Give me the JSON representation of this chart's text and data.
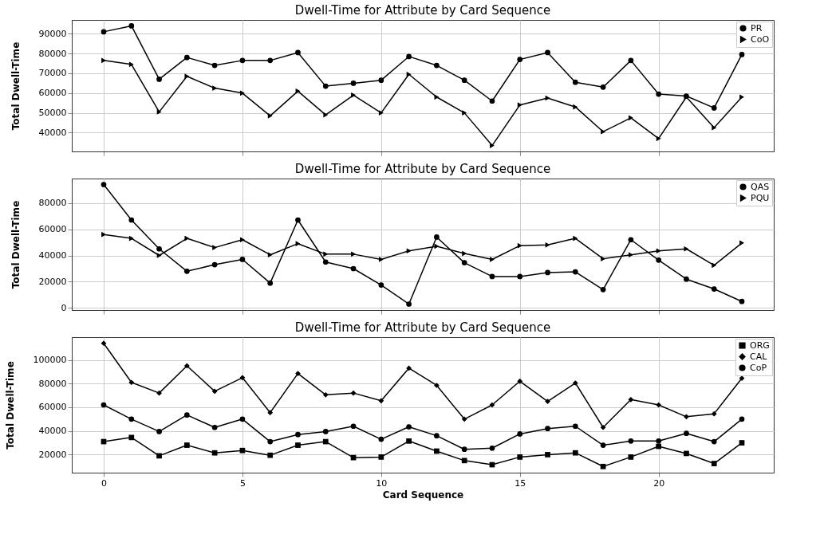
{
  "chart_data": [
    {
      "type": "line",
      "title": "Dwell-Time for Attribute by Card Sequence",
      "ylabel": "Total Dwell-Time",
      "x": [
        0,
        1,
        2,
        3,
        4,
        5,
        6,
        7,
        8,
        9,
        10,
        11,
        12,
        13,
        14,
        15,
        16,
        17,
        18,
        19,
        20,
        21,
        22,
        23
      ],
      "xlim": [
        -1.15,
        24.15
      ],
      "xticks": [
        0,
        5,
        10,
        15,
        20
      ],
      "ylim": [
        30500,
        97000
      ],
      "yticks": [
        40000,
        50000,
        60000,
        70000,
        80000,
        90000
      ],
      "grid": true,
      "legend": "top right",
      "tick_labels": "y",
      "series": [
        {
          "name": "PR",
          "color": "#000000",
          "marker": "circle",
          "values": [
            91000,
            94000,
            67000,
            78000,
            74000,
            76500,
            76500,
            80500,
            63500,
            65000,
            66500,
            78500,
            74000,
            66500,
            56000,
            77000,
            80500,
            65500,
            63000,
            76500,
            59500,
            58500,
            52500,
            79500
          ]
        },
        {
          "name": "CoO",
          "color": "#000000",
          "marker": "triangle",
          "values": [
            76500,
            74500,
            50500,
            68500,
            62500,
            60000,
            48500,
            61000,
            49000,
            59000,
            50000,
            69500,
            58000,
            50000,
            33500,
            54000,
            57500,
            53000,
            40500,
            47500,
            37000,
            58000,
            42500,
            58000
          ]
        }
      ]
    },
    {
      "type": "line",
      "title": "Dwell-Time for Attribute by Card Sequence",
      "ylabel": "Total Dwell-Time",
      "x": [
        0,
        1,
        2,
        3,
        4,
        5,
        6,
        7,
        8,
        9,
        10,
        11,
        12,
        13,
        14,
        15,
        16,
        17,
        18,
        19,
        20,
        21,
        22,
        23
      ],
      "xlim": [
        -1.15,
        24.15
      ],
      "xticks": [
        0,
        5,
        10,
        15,
        20
      ],
      "ylim": [
        -1550,
        98550
      ],
      "yticks": [
        0,
        20000,
        40000,
        60000,
        80000
      ],
      "grid": true,
      "legend": "top right",
      "tick_labels": "y",
      "series": [
        {
          "name": "QAS",
          "color": "#000000",
          "marker": "circle",
          "values": [
            94000,
            67000,
            45000,
            28000,
            33000,
            37000,
            19000,
            67000,
            35000,
            30000,
            17500,
            3000,
            54000,
            34500,
            24000,
            24000,
            27000,
            27500,
            14000,
            52000,
            36500,
            22000,
            14500,
            5000
          ]
        },
        {
          "name": "PQU",
          "color": "#000000",
          "marker": "triangle",
          "values": [
            56000,
            53000,
            40000,
            53000,
            46000,
            52000,
            40500,
            49000,
            41000,
            41000,
            37000,
            43500,
            47000,
            41500,
            37000,
            47500,
            48000,
            53000,
            37500,
            40500,
            43500,
            45000,
            32500,
            49500
          ]
        }
      ]
    },
    {
      "type": "line",
      "title": "Dwell-Time for Attribute by Card Sequence",
      "xlabel": "Card Sequence",
      "ylabel": "Total Dwell-Time",
      "x": [
        0,
        1,
        2,
        3,
        4,
        5,
        6,
        7,
        8,
        9,
        10,
        11,
        12,
        13,
        14,
        15,
        16,
        17,
        18,
        19,
        20,
        21,
        22,
        23
      ],
      "xlim": [
        -1.15,
        24.15
      ],
      "xticks": [
        0,
        5,
        10,
        15,
        20
      ],
      "ylim": [
        4800,
        119200
      ],
      "yticks": [
        20000,
        40000,
        60000,
        80000,
        100000
      ],
      "grid": true,
      "legend": "top right",
      "series": [
        {
          "name": "ORG",
          "color": "#000000",
          "marker": "square",
          "values": [
            31000,
            34500,
            19000,
            28000,
            21500,
            23500,
            19500,
            28000,
            31000,
            17500,
            18000,
            31500,
            23000,
            15000,
            11500,
            18000,
            20000,
            21500,
            10000,
            18000,
            27000,
            21000,
            12500,
            30000
          ]
        },
        {
          "name": "CAL",
          "color": "#000000",
          "marker": "diamond",
          "values": [
            114000,
            81000,
            72000,
            95000,
            73500,
            85000,
            55500,
            88500,
            70500,
            72000,
            65500,
            93000,
            78500,
            50000,
            62000,
            82000,
            65000,
            80500,
            43000,
            66500,
            62000,
            52000,
            54500,
            84500
          ]
        },
        {
          "name": "CoP",
          "color": "#000000",
          "marker": "circle",
          "values": [
            62000,
            50000,
            39500,
            53500,
            43000,
            50000,
            31000,
            37000,
            39500,
            44000,
            33000,
            43500,
            36000,
            24500,
            25500,
            37500,
            42000,
            44000,
            28000,
            31500,
            31500,
            38000,
            31000,
            50000
          ]
        }
      ]
    }
  ]
}
